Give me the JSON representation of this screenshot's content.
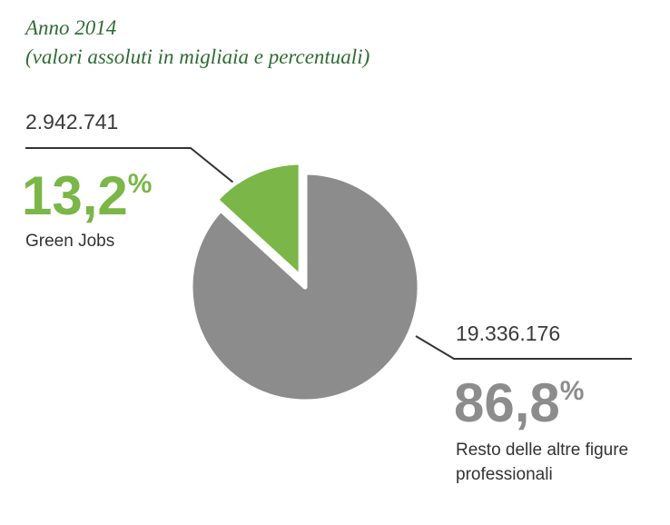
{
  "chart_data": {
    "type": "pie",
    "title": "Anno 2014",
    "subtitle": "(valori assoluti in migliaia e percentuali)",
    "categories": [
      "Green Jobs",
      "Resto delle altre figure professionali"
    ],
    "values": [
      13.2,
      86.8
    ],
    "value_labels": [
      "13,2%",
      "86,8%"
    ],
    "absolute_labels": [
      "2.942.741",
      "19.336.176"
    ],
    "colors": [
      "#7ab648",
      "#8c8c8c"
    ]
  }
}
